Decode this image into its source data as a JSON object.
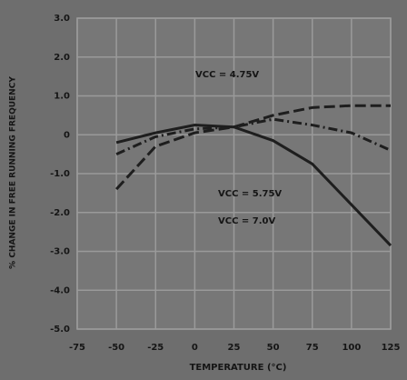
{
  "chart_data": {
    "type": "line",
    "ylabel": "% CHANGE IN FREE RUNNING FREQUENCY",
    "xlabel": "TEMPERATURE (°C)",
    "x": [
      -50,
      -25,
      0,
      25,
      50,
      75,
      100,
      125
    ],
    "series": [
      {
        "name": "VCC = 4.75V",
        "color": "#1e1e1e",
        "dash": "dashed",
        "values": [
          -1.4,
          -0.3,
          0.05,
          0.2,
          0.5,
          0.7,
          0.75,
          0.75
        ]
      },
      {
        "name": "VCC = 5.75V",
        "color": "#1e1e1e",
        "dash": "dashdot",
        "values": [
          -0.5,
          -0.05,
          0.15,
          0.2,
          0.4,
          0.25,
          0.05,
          -0.4
        ]
      },
      {
        "name": "VCC = 7.0V",
        "color": "#1e1e1e",
        "dash": "solid",
        "values": [
          -0.2,
          0.05,
          0.25,
          0.2,
          -0.15,
          -0.75,
          -1.8,
          -2.85
        ]
      }
    ],
    "xlim": [
      -75,
      125
    ],
    "xticks": [
      -75,
      -50,
      -25,
      0,
      25,
      50,
      75,
      100,
      125
    ],
    "ylim": [
      -5,
      3
    ],
    "yticks": [
      {
        "value": 3,
        "label": "3.0"
      },
      {
        "value": 2,
        "label": "2.0"
      },
      {
        "value": 1,
        "label": "1.0"
      },
      0,
      {
        "value": -1,
        "label": "-1.0"
      },
      {
        "value": -2,
        "label": "-2.0"
      },
      {
        "value": -3,
        "label": "-3.0"
      },
      {
        "value": -4,
        "label": "-4.0"
      },
      {
        "value": -5,
        "label": "-5.0"
      }
    ],
    "grid": true
  }
}
